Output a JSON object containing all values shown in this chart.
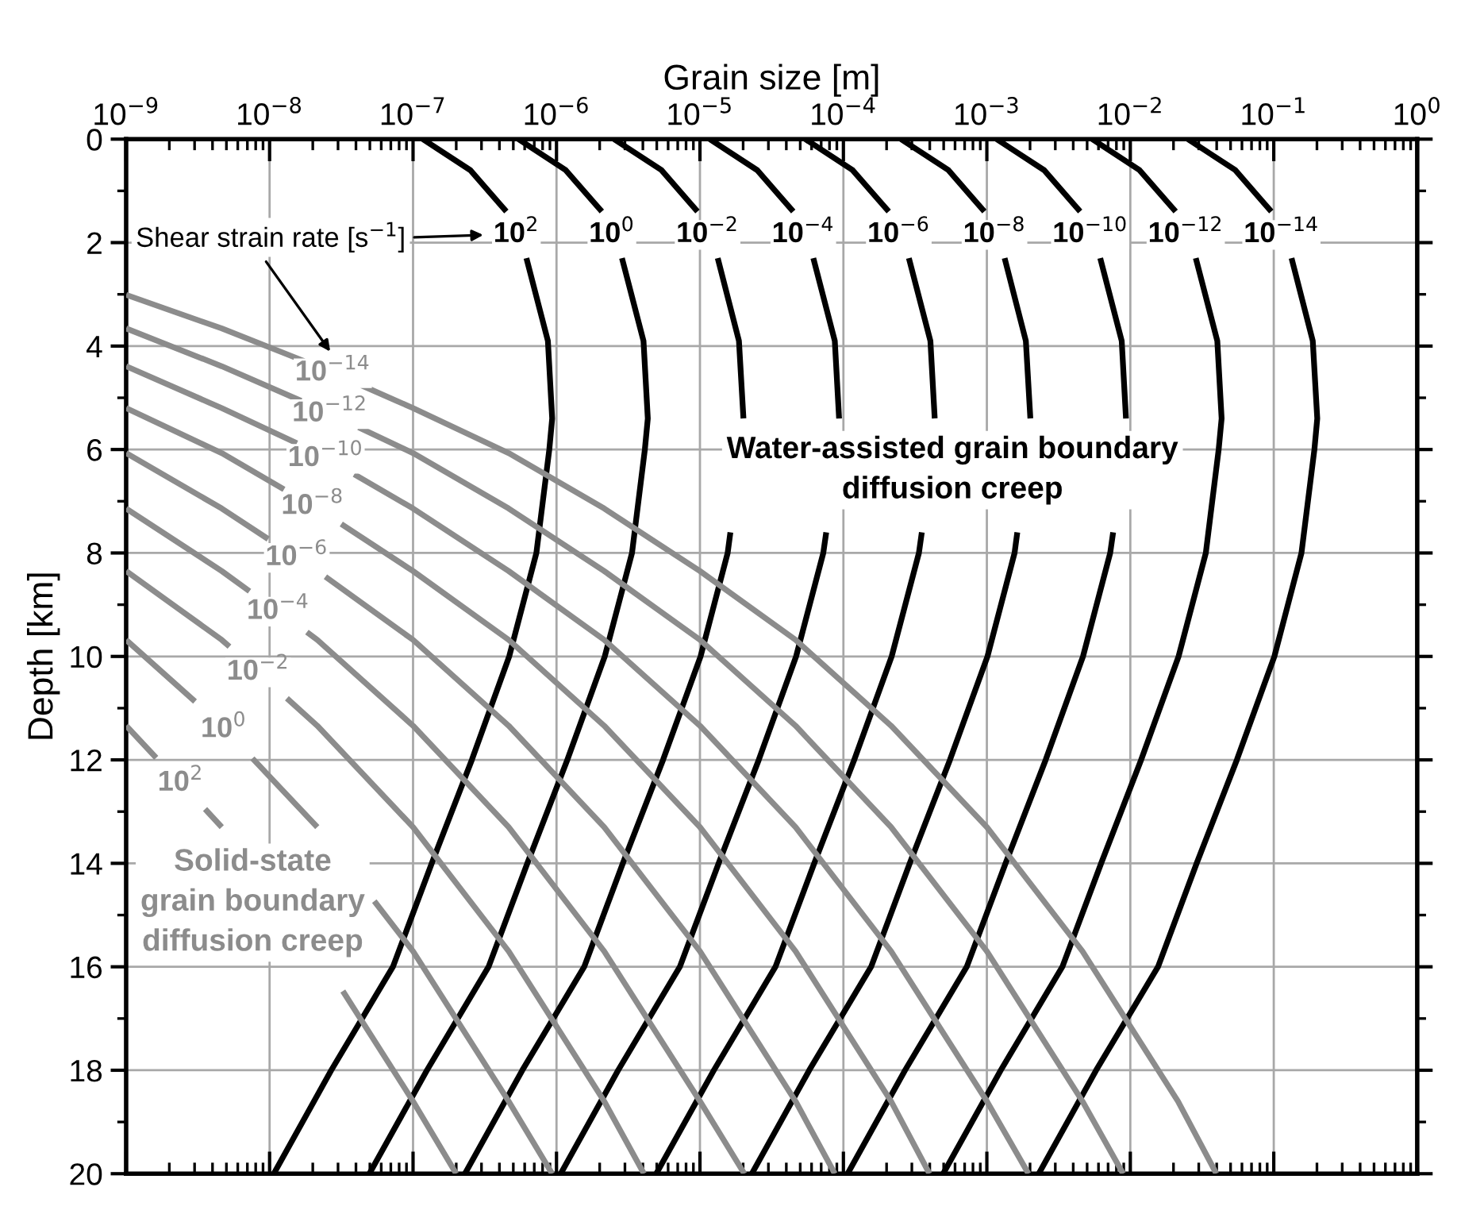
{
  "chart_data": {
    "type": "line",
    "xlabel": "Grain size [m]",
    "ylabel": "Depth [km]",
    "log": "x",
    "xlim": [
      1e-09,
      1
    ],
    "ylim": [
      20,
      0
    ],
    "xticks": [
      {
        "value": 1e-09,
        "label": "10$^{−9}$"
      },
      {
        "value": 1e-08,
        "label": "10$^{−8}$"
      },
      {
        "value": 1e-07,
        "label": "10$^{−7}$"
      },
      {
        "value": 1e-06,
        "label": "10$^{−6}$"
      },
      {
        "value": 1e-05,
        "label": "10$^{−5}$"
      },
      {
        "value": 0.0001,
        "label": "10$^{−4}$"
      },
      {
        "value": 0.001,
        "label": "10$^{−3}$"
      },
      {
        "value": 0.01,
        "label": "10$^{−2}$"
      },
      {
        "value": 0.1,
        "label": "10$^{−1}$"
      },
      {
        "value": 1,
        "label": "10$^{0}$"
      }
    ],
    "yticks": [
      0,
      2,
      4,
      6,
      8,
      10,
      12,
      14,
      16,
      18,
      20
    ],
    "grid": true,
    "marker": "none",
    "line_style": "solid",
    "series": [
      {
        "name": "10$^{2}$",
        "color": "#000000",
        "x": [
          1.17e-07,
          2.51e-07,
          4.47e-07,
          null,
          6.17e-07,
          8.71e-07,
          9.33e-07,
          8.91e-07,
          7.24e-07,
          4.68e-07,
          2.57e-07,
          1.35e-07,
          7.24e-08,
          2.69e-08,
          1.07e-08
        ],
        "values": [
          0,
          0.6,
          1.4,
          null,
          2.3,
          3.9,
          5.4,
          6,
          8,
          10,
          12,
          14,
          16,
          18,
          20
        ]
      },
      {
        "name": "10$^{0}$",
        "color": "#000000",
        "x": [
          5.43e-07,
          1.16e-06,
          2.07e-06,
          null,
          2.86e-06,
          4.04e-06,
          4.33e-06,
          4.13e-06,
          3.36e-06,
          2.17e-06,
          1.19e-06,
          6.26e-07,
          3.36e-07,
          1.25e-07,
          4.96e-08
        ],
        "values": [
          0,
          0.6,
          1.4,
          null,
          2.3,
          3.9,
          5.4,
          6,
          8,
          10,
          12,
          14,
          16,
          18,
          20
        ]
      },
      {
        "name": "10$^{−2}$",
        "color": "#000000",
        "x": [
          2.52e-06,
          5.4e-06,
          9.61e-06,
          null,
          1.33e-05,
          1.87e-05,
          2.01e-05,
          null,
          1.63e-05,
          1.56e-05,
          1.01e-05,
          5.53e-06,
          2.9e-06,
          1.56e-06,
          5.78e-07,
          2.3e-07
        ],
        "values": [
          0,
          0.6,
          1.4,
          null,
          2.3,
          3.9,
          5.4,
          null,
          7.6,
          8,
          10,
          12,
          14,
          16,
          18,
          20
        ]
      },
      {
        "name": "10$^{−4}$",
        "color": "#000000",
        "x": [
          1.17e-05,
          2.51e-05,
          4.47e-05,
          null,
          6.17e-05,
          8.71e-05,
          9.33e-05,
          null,
          7.59e-05,
          7.24e-05,
          4.68e-05,
          2.57e-05,
          1.35e-05,
          7.24e-06,
          2.69e-06,
          1.07e-06
        ],
        "values": [
          0,
          0.6,
          1.4,
          null,
          2.3,
          3.9,
          5.4,
          null,
          7.6,
          8,
          10,
          12,
          14,
          16,
          18,
          20
        ]
      },
      {
        "name": "10$^{−6}$",
        "color": "#000000",
        "x": [
          5.43e-05,
          0.000116,
          0.000207,
          null,
          0.000286,
          0.000404,
          0.000433,
          null,
          0.000352,
          0.000336,
          0.000217,
          0.000119,
          6.26e-05,
          3.36e-05,
          1.25e-05,
          4.96e-06
        ],
        "values": [
          0,
          0.6,
          1.4,
          null,
          2.3,
          3.9,
          5.4,
          null,
          7.6,
          8,
          10,
          12,
          14,
          16,
          18,
          20
        ]
      },
      {
        "name": "10$^{−8}$",
        "color": "#000000",
        "x": [
          0.000252,
          0.00054,
          0.000961,
          null,
          0.00133,
          0.00187,
          0.00201,
          null,
          0.00163,
          0.00156,
          0.00101,
          0.000553,
          0.00029,
          0.000156,
          5.78e-05,
          2.3e-05
        ],
        "values": [
          0,
          0.6,
          1.4,
          null,
          2.3,
          3.9,
          5.4,
          null,
          7.6,
          8,
          10,
          12,
          14,
          16,
          18,
          20
        ]
      },
      {
        "name": "10$^{−10}$",
        "color": "#000000",
        "x": [
          0.00117,
          0.00251,
          0.00447,
          null,
          0.00617,
          0.00871,
          0.00933,
          null,
          0.00759,
          0.00724,
          0.00468,
          0.00257,
          0.00135,
          0.000724,
          0.000269,
          0.000107
        ],
        "values": [
          0,
          0.6,
          1.4,
          null,
          2.3,
          3.9,
          5.4,
          null,
          7.6,
          8,
          10,
          12,
          14,
          16,
          18,
          20
        ]
      },
      {
        "name": "10$^{−12}$",
        "color": "#000000",
        "x": [
          0.00543,
          0.0116,
          0.0207,
          null,
          0.0286,
          0.0404,
          0.0433,
          0.0413,
          0.0336,
          0.0217,
          0.0119,
          0.00626,
          0.00336,
          0.00125,
          0.000496
        ],
        "values": [
          0,
          0.6,
          1.4,
          null,
          2.3,
          3.9,
          5.4,
          6,
          8,
          10,
          12,
          14,
          16,
          18,
          20
        ]
      },
      {
        "name": "10$^{−14}$",
        "color": "#000000",
        "x": [
          0.0252,
          0.054,
          0.0961,
          null,
          0.133,
          0.187,
          0.201,
          0.192,
          0.156,
          0.101,
          0.0553,
          0.029,
          0.0156,
          0.00578,
          0.0023
        ],
        "values": [
          0,
          0.6,
          1.4,
          null,
          2.3,
          3.9,
          5.4,
          6,
          8,
          10,
          12,
          14,
          16,
          18,
          20
        ]
      },
      {
        "name": "10$^{−14}$",
        "color": "#8c8c8c",
        "x": [
          1e-09,
          4.64e-09,
          1.74e-08,
          null,
          4.37e-08,
          1e-07,
          4.64e-07,
          2.15e-06,
          1e-05,
          4.64e-05,
          0.000215,
          0.001,
          0.00464,
          0.0215,
          0.0398
        ],
        "values": [
          3.01,
          3.66,
          4.29,
          null,
          4.76,
          5.2,
          6.07,
          7.14,
          8.35,
          9.68,
          11.34,
          13.3,
          15.7,
          18.6,
          20
        ]
      },
      {
        "name": "10$^{−12}$",
        "color": "#8c8c8c",
        "x": [
          1e-09,
          4.64e-09,
          1.66e-08,
          null,
          4.17e-08,
          1e-07,
          4.64e-07,
          2.15e-06,
          1e-05,
          4.64e-05,
          0.000215,
          0.001,
          0.00464,
          0.00891
        ],
        "values": [
          3.66,
          4.39,
          5.06,
          null,
          5.57,
          6.07,
          7.14,
          8.35,
          9.68,
          11.34,
          13.3,
          15.7,
          18.6,
          20
        ]
      },
      {
        "name": "10$^{−10}$",
        "color": "#8c8c8c",
        "x": [
          1e-09,
          4.64e-09,
          1.55e-08,
          null,
          3.89e-08,
          1e-07,
          4.64e-07,
          2.15e-06,
          1e-05,
          4.64e-05,
          0.000215,
          0.001,
          0.00195
        ],
        "values": [
          4.39,
          5.2,
          5.88,
          null,
          6.48,
          7.14,
          8.35,
          9.68,
          11.34,
          13.3,
          15.7,
          18.6,
          20
        ]
      },
      {
        "name": "10$^{−8}$",
        "color": "#8c8c8c",
        "x": [
          1e-09,
          4.64e-09,
          1.26e-08,
          null,
          3.16e-08,
          1e-07,
          4.64e-07,
          2.15e-06,
          1e-05,
          4.64e-05,
          0.000215,
          0.000398
        ],
        "values": [
          5.2,
          6.07,
          6.77,
          null,
          7.44,
          8.35,
          9.68,
          11.34,
          13.3,
          15.7,
          18.6,
          20
        ]
      },
      {
        "name": "10$^{−6}$",
        "color": "#8c8c8c",
        "x": [
          1e-09,
          4.64e-09,
          9.77e-09,
          null,
          2.45e-08,
          1e-07,
          4.64e-07,
          2.15e-06,
          1e-05,
          4.64e-05,
          8.71e-05
        ],
        "values": [
          6.07,
          7.14,
          7.73,
          null,
          8.46,
          9.68,
          11.34,
          13.3,
          15.7,
          18.6,
          20
        ]
      },
      {
        "name": "10$^{−4}$",
        "color": "#8c8c8c",
        "x": [
          1e-09,
          4.64e-09,
          7.24e-09,
          null,
          1.82e-08,
          2.15e-08,
          1e-07,
          4.64e-07,
          2.15e-06,
          1e-05,
          2.04e-05
        ],
        "values": [
          7.14,
          8.35,
          8.74,
          null,
          9.53,
          9.68,
          11.34,
          13.3,
          15.7,
          18.6,
          20
        ]
      },
      {
        "name": "10$^{−2}$",
        "color": "#8c8c8c",
        "x": [
          1e-09,
          4.64e-09,
          5.25e-09,
          null,
          1.32e-08,
          2.15e-08,
          1e-07,
          4.64e-07,
          2.15e-06,
          4.07e-06
        ],
        "values": [
          8.35,
          9.68,
          9.81,
          null,
          10.81,
          11.34,
          13.3,
          15.7,
          18.6,
          20
        ]
      },
      {
        "name": "10$^{0}$",
        "color": "#8c8c8c",
        "x": [
          1e-09,
          3.02e-09,
          null,
          7.59e-09,
          2.15e-08,
          null,
          5.37e-08,
          1e-07,
          4.64e-07,
          9.33e-07
        ],
        "values": [
          9.68,
          10.87,
          null,
          11.97,
          13.3,
          null,
          14.73,
          15.7,
          18.6,
          20
        ]
      },
      {
        "name": "10$^{2}$",
        "color": "#8c8c8c",
        "x": [
          1e-09,
          1.62e-09,
          null,
          3.55e-09,
          4.64e-09,
          null,
          3.24e-08,
          1e-07,
          2e-07
        ],
        "values": [
          11.34,
          11.96,
          null,
          12.95,
          13.3,
          null,
          16.47,
          18.6,
          20
        ]
      }
    ],
    "annotations": [
      "Shear strain rate [s$^{−1}$]",
      "Water-assisted grain boundary\ndiffusion creep",
      "Solid-state\ngrain boundary\ndiffusion creep"
    ]
  }
}
